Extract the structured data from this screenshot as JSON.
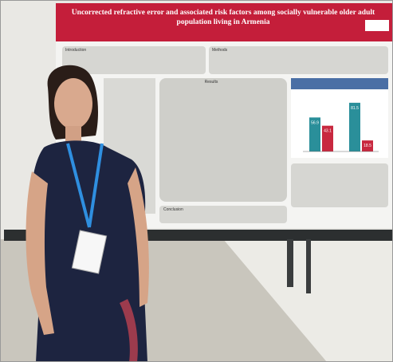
{
  "poster": {
    "title": "Uncorrected refractive error and associated risk factors among socially vulnerable older adult population living in Armenia",
    "sections": [
      "Introduction",
      "Methods",
      "Results",
      "Conclusion"
    ],
    "figure": {
      "values": [
        56.9,
        43.1,
        81.5,
        18.5
      ],
      "colors": [
        "#2a8f9a",
        "#c8283f",
        "#2a8f9a",
        "#c8283f"
      ]
    }
  }
}
